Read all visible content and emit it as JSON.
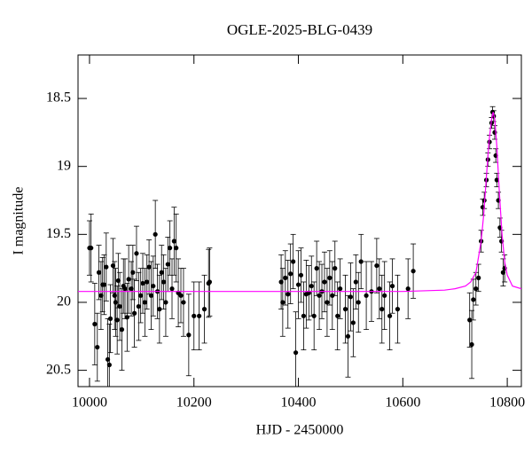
{
  "chart_data": {
    "type": "scatter",
    "title": "OGLE-2025-BLG-0439",
    "x_label": "HJD - 2450000",
    "y_label": "I magnitude",
    "xlim": [
      9978,
      10827
    ],
    "ylim": [
      18.18,
      20.62
    ],
    "y_inverted": true,
    "xticks": [
      10000,
      10200,
      10400,
      10600,
      10800
    ],
    "yticks": [
      18.5,
      19,
      19.5,
      20,
      20.5
    ],
    "series": [
      {
        "type": "scatter",
        "color": "#000000",
        "x": [
          10000,
          10003,
          10010,
          10015,
          10018,
          10022,
          10025,
          10028,
          10032,
          10035,
          10038,
          10040,
          10045,
          10048,
          10050,
          10053,
          10055,
          10058,
          10062,
          10065,
          10068,
          10072,
          10075,
          10080,
          10083,
          10086,
          10090,
          10094,
          10098,
          10102,
          10106,
          10110,
          10114,
          10118,
          10122,
          10126,
          10130,
          10134,
          10138,
          10142,
          10146,
          10150,
          10154,
          10158,
          10162,
          10166,
          10170,
          10175,
          10180,
          10190,
          10200,
          10210,
          10220,
          10228,
          10230,
          10367,
          10370,
          10375,
          10380,
          10385,
          10390,
          10395,
          10400,
          10405,
          10410,
          10415,
          10420,
          10425,
          10430,
          10435,
          10440,
          10445,
          10450,
          10455,
          10460,
          10465,
          10470,
          10475,
          10480,
          10490,
          10495,
          10500,
          10505,
          10510,
          10515,
          10520,
          10530,
          10540,
          10550,
          10555,
          10560,
          10565,
          10575,
          10580,
          10590,
          10610,
          10620,
          10728,
          10732,
          10735,
          10740,
          10745,
          10750,
          10753,
          10756,
          10760,
          10763,
          10766,
          10770,
          10772,
          10774,
          10776,
          10778,
          10780,
          10783,
          10786,
          10789,
          10792,
          10795
        ],
        "values": [
          19.6,
          19.6,
          20.16,
          20.33,
          19.78,
          19.95,
          19.87,
          19.87,
          19.74,
          20.42,
          20.46,
          20.12,
          19.73,
          19.95,
          20.0,
          20.13,
          19.84,
          20.03,
          20.2,
          19.88,
          19.9,
          20.11,
          19.83,
          19.9,
          19.78,
          20.08,
          19.64,
          20.03,
          19.95,
          19.86,
          20.0,
          19.85,
          19.74,
          19.95,
          19.88,
          19.5,
          19.92,
          20.05,
          19.78,
          19.85,
          20.0,
          19.72,
          19.6,
          19.9,
          19.55,
          19.6,
          19.93,
          19.95,
          20.0,
          20.24,
          20.1,
          20.1,
          20.05,
          19.86,
          19.85,
          19.85,
          20.0,
          19.82,
          19.94,
          19.79,
          19.7,
          20.37,
          19.87,
          19.8,
          20.1,
          19.94,
          19.93,
          19.88,
          20.1,
          19.75,
          19.95,
          19.92,
          19.85,
          20.0,
          19.82,
          19.95,
          19.75,
          20.1,
          19.9,
          20.05,
          20.25,
          19.96,
          20.15,
          19.85,
          20.0,
          19.7,
          19.95,
          19.92,
          19.73,
          19.9,
          20.05,
          19.95,
          20.1,
          19.88,
          20.05,
          19.9,
          19.77,
          20.13,
          20.31,
          19.98,
          19.9,
          19.82,
          19.55,
          19.3,
          19.25,
          19.1,
          18.95,
          18.82,
          18.68,
          18.6,
          18.63,
          18.75,
          18.92,
          19.1,
          19.25,
          19.45,
          19.55,
          19.78,
          19.75
        ],
        "errors": [
          0.2,
          0.25,
          0.3,
          0.25,
          0.2,
          0.25,
          0.2,
          0.22,
          0.25,
          0.3,
          0.3,
          0.25,
          0.2,
          0.25,
          0.25,
          0.25,
          0.2,
          0.25,
          0.3,
          0.2,
          0.22,
          0.25,
          0.25,
          0.2,
          0.2,
          0.25,
          0.2,
          0.25,
          0.2,
          0.22,
          0.25,
          0.2,
          0.2,
          0.25,
          0.22,
          0.25,
          0.2,
          0.25,
          0.2,
          0.2,
          0.25,
          0.2,
          0.2,
          0.22,
          0.25,
          0.25,
          0.25,
          0.2,
          0.25,
          0.3,
          0.25,
          0.25,
          0.25,
          0.25,
          0.25,
          0.2,
          0.25,
          0.2,
          0.25,
          0.22,
          0.2,
          0.3,
          0.25,
          0.2,
          0.25,
          0.25,
          0.2,
          0.22,
          0.25,
          0.2,
          0.25,
          0.2,
          0.22,
          0.25,
          0.2,
          0.25,
          0.2,
          0.25,
          0.22,
          0.25,
          0.3,
          0.25,
          0.25,
          0.2,
          0.22,
          0.2,
          0.25,
          0.22,
          0.2,
          0.22,
          0.25,
          0.25,
          0.25,
          0.2,
          0.25,
          0.22,
          0.2,
          0.2,
          0.25,
          0.15,
          0.12,
          0.1,
          0.08,
          0.06,
          0.06,
          0.05,
          0.05,
          0.05,
          0.04,
          0.04,
          0.04,
          0.05,
          0.05,
          0.05,
          0.06,
          0.07,
          0.08,
          0.1,
          0.1
        ]
      },
      {
        "type": "line",
        "color": "#ff00ff",
        "x": [
          9978,
          10100,
          10200,
          10300,
          10400,
          10500,
          10600,
          10680,
          10700,
          10720,
          10730,
          10740,
          10750,
          10755,
          10760,
          10765,
          10770,
          10773,
          10776,
          10780,
          10785,
          10790,
          10795,
          10800,
          10810,
          10827
        ],
        "values": [
          19.92,
          19.92,
          19.92,
          19.92,
          19.92,
          19.92,
          19.92,
          19.91,
          19.9,
          19.88,
          19.85,
          19.78,
          19.55,
          19.35,
          19.08,
          18.82,
          18.65,
          18.6,
          18.65,
          18.85,
          19.2,
          19.5,
          19.7,
          19.8,
          19.88,
          19.9
        ]
      }
    ]
  }
}
